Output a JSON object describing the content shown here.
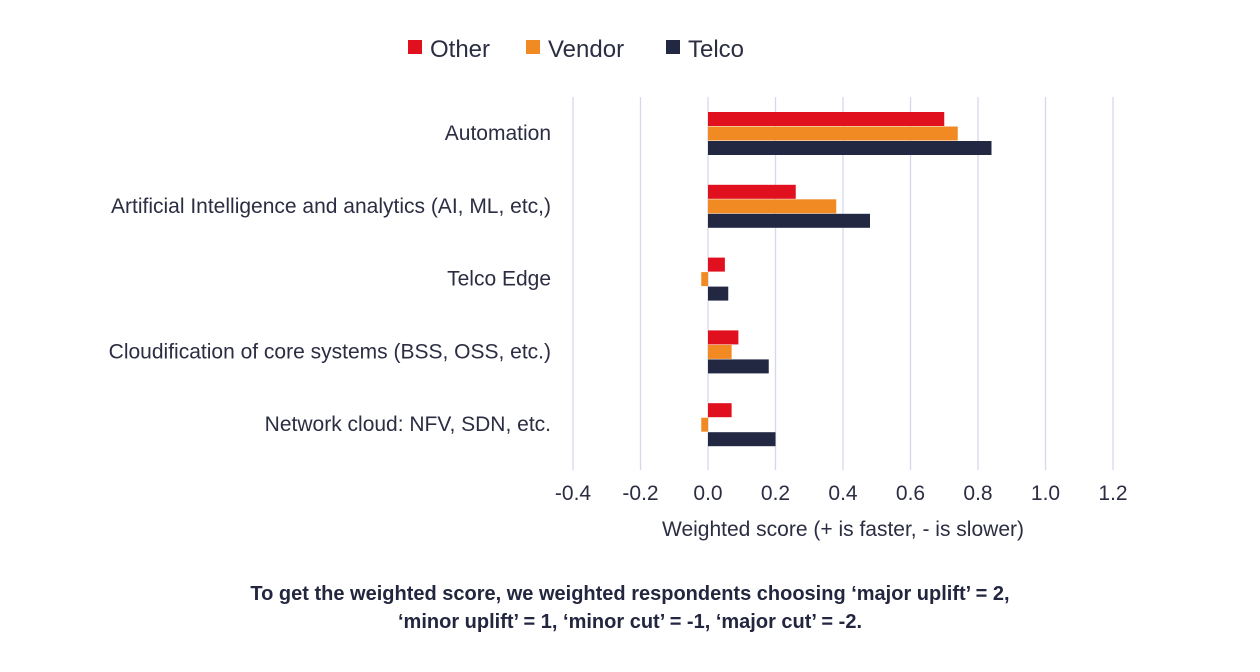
{
  "chart_data": {
    "type": "bar",
    "orientation": "horizontal",
    "categories": [
      "Automation",
      "Artificial Intelligence and analytics (AI, ML, etc,)",
      "Telco Edge",
      "Cloudification of core systems (BSS, OSS, etc.)",
      "Network cloud: NFV, SDN, etc."
    ],
    "series": [
      {
        "name": "Other",
        "color": "#e0101f",
        "values": [
          0.7,
          0.26,
          0.05,
          0.09,
          0.07
        ]
      },
      {
        "name": "Vendor",
        "color": "#f28a24",
        "values": [
          0.74,
          0.38,
          -0.02,
          0.07,
          -0.02
        ]
      },
      {
        "name": "Telco",
        "color": "#232842",
        "values": [
          0.84,
          0.48,
          0.06,
          0.18,
          0.2
        ]
      }
    ],
    "xlabel": "Weighted score (+ is faster, - is slower)",
    "xlim": [
      -0.4,
      1.2
    ],
    "xticks": [
      "-0.4",
      "-0.2",
      "0.0",
      "0.2",
      "0.4",
      "0.6",
      "0.8",
      "1.0",
      "1.2"
    ],
    "grid": "vertical",
    "gridColor": "#d5d8ea",
    "legend": "top"
  },
  "note": {
    "line1": "To get the weighted score, we weighted respondents choosing ‘major uplift’ = 2,",
    "line2": "‘minor uplift’ = 1, ‘minor cut’ = -1, ‘major cut’ = -2."
  }
}
